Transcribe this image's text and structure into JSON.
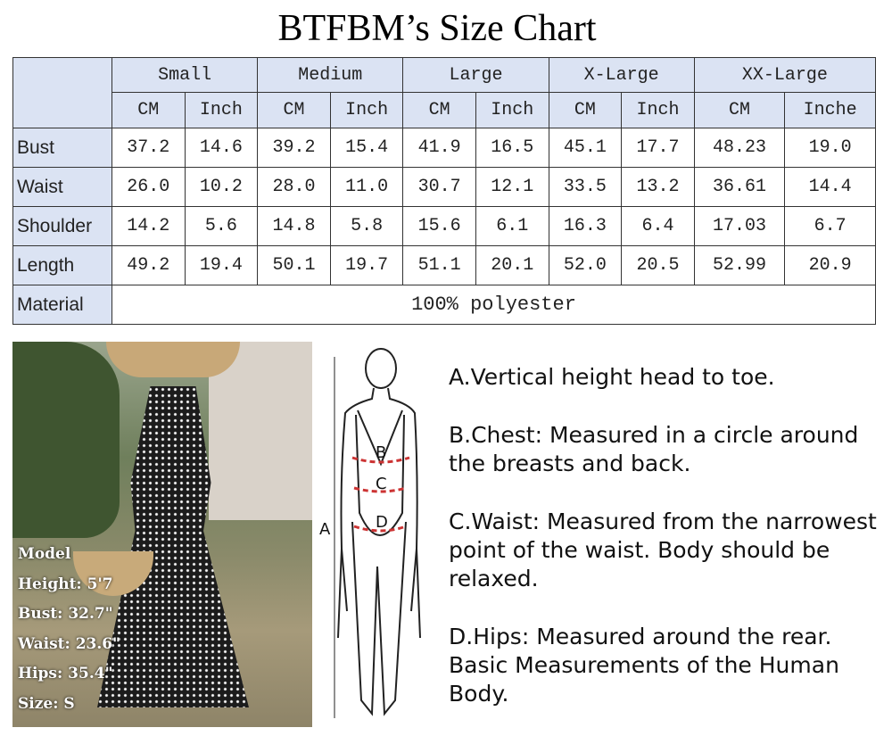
{
  "title": "BTFBM’s Size Chart",
  "sizes": [
    "Small",
    "Medium",
    "Large",
    "X-Large",
    "XX-Large"
  ],
  "units": [
    "CM",
    "Inch",
    "CM",
    "Inch",
    "CM",
    "Inch",
    "CM",
    "Inch",
    "CM",
    "Inche"
  ],
  "rows": [
    {
      "label": "Bust",
      "values": [
        "37.2",
        "14.6",
        "39.2",
        "15.4",
        "41.9",
        "16.5",
        "45.1",
        "17.7",
        "48.23",
        "19.0"
      ]
    },
    {
      "label": "Waist",
      "values": [
        "26.0",
        "10.2",
        "28.0",
        "11.0",
        "30.7",
        "12.1",
        "33.5",
        "13.2",
        "36.61",
        "14.4"
      ]
    },
    {
      "label": "Shoulder",
      "values": [
        "14.2",
        "5.6",
        "14.8",
        "5.8",
        "15.6",
        "6.1",
        "16.3",
        "6.4",
        "17.03",
        "6.7"
      ]
    },
    {
      "label": "Length",
      "values": [
        "49.2",
        "19.4",
        "50.1",
        "19.7",
        "51.1",
        "20.1",
        "52.0",
        "20.5",
        "52.99",
        "20.9"
      ]
    }
  ],
  "material": {
    "label": "Material",
    "value": "100% polyester"
  },
  "model": [
    "Model",
    "Height: 5'7",
    "Bust: 32.7\"",
    "Waist: 23.6\"",
    "Hips: 35.4\"",
    "Size: S"
  ],
  "figure_labels": {
    "a": "A",
    "b": "B",
    "c": "C",
    "d": "D"
  },
  "descriptions": [
    "A.Vertical height head to toe.",
    "B.Chest: Measured in a circle around the breasts and back.",
    "C.Waist: Measured from the narrowest point of the waist. Body should be relaxed.",
    "D.Hips: Measured around the rear. Basic Measurements of the Human Body."
  ]
}
